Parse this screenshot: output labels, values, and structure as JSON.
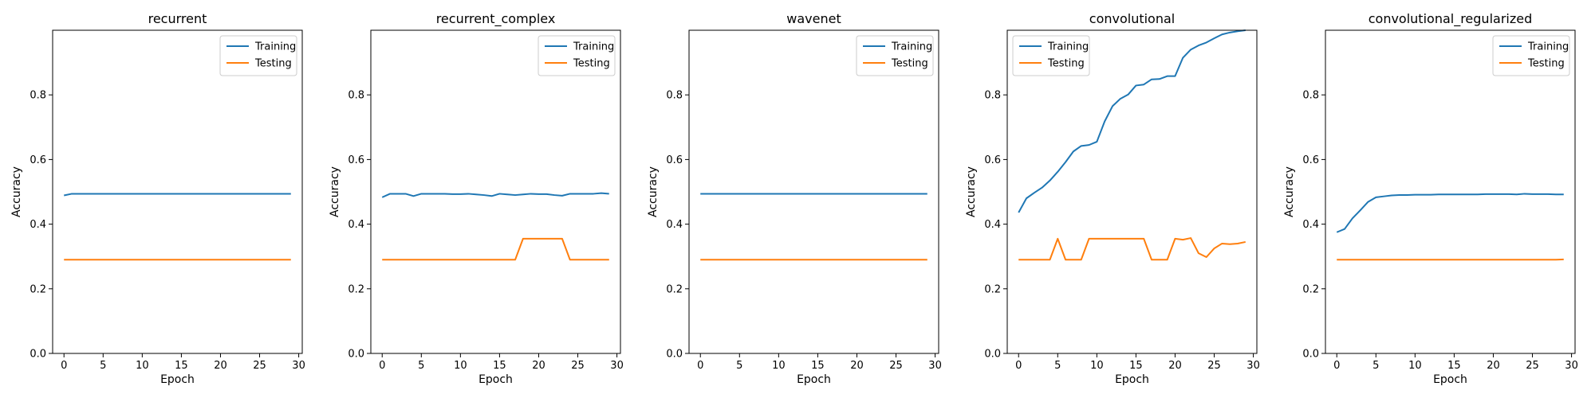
{
  "chart_data": [
    {
      "type": "line",
      "title": "recurrent",
      "xlabel": "Epoch",
      "ylabel": "Accuracy",
      "xlim": [
        -1.45,
        30.45
      ],
      "ylim": [
        0.0,
        1.0
      ],
      "xticks": [
        0,
        5,
        10,
        15,
        20,
        25,
        30
      ],
      "yticks": [
        0.0,
        0.2,
        0.4,
        0.6,
        0.8
      ],
      "legend_loc": "top-right",
      "x": [
        0,
        1,
        2,
        3,
        4,
        5,
        6,
        7,
        8,
        9,
        10,
        11,
        12,
        13,
        14,
        15,
        16,
        17,
        18,
        19,
        20,
        21,
        22,
        23,
        24,
        25,
        26,
        27,
        28,
        29
      ],
      "series": [
        {
          "name": "Training",
          "color": "#1f77b4",
          "values": [
            0.489,
            0.494,
            0.494,
            0.494,
            0.494,
            0.494,
            0.494,
            0.494,
            0.494,
            0.494,
            0.494,
            0.494,
            0.494,
            0.494,
            0.494,
            0.494,
            0.494,
            0.494,
            0.494,
            0.494,
            0.494,
            0.494,
            0.494,
            0.494,
            0.494,
            0.494,
            0.494,
            0.494,
            0.494,
            0.494
          ]
        },
        {
          "name": "Testing",
          "color": "#ff7f0e",
          "values": [
            0.29,
            0.29,
            0.29,
            0.29,
            0.29,
            0.29,
            0.29,
            0.29,
            0.29,
            0.29,
            0.29,
            0.29,
            0.29,
            0.29,
            0.29,
            0.29,
            0.29,
            0.29,
            0.29,
            0.29,
            0.29,
            0.29,
            0.29,
            0.29,
            0.29,
            0.29,
            0.29,
            0.29,
            0.29,
            0.29
          ]
        }
      ]
    },
    {
      "type": "line",
      "title": "recurrent_complex",
      "xlabel": "Epoch",
      "ylabel": "Accuracy",
      "xlim": [
        -1.45,
        30.45
      ],
      "ylim": [
        0.0,
        1.0
      ],
      "xticks": [
        0,
        5,
        10,
        15,
        20,
        25,
        30
      ],
      "yticks": [
        0.0,
        0.2,
        0.4,
        0.6,
        0.8
      ],
      "legend_loc": "top-right",
      "x": [
        0,
        1,
        2,
        3,
        4,
        5,
        6,
        7,
        8,
        9,
        10,
        11,
        12,
        13,
        14,
        15,
        16,
        17,
        18,
        19,
        20,
        21,
        22,
        23,
        24,
        25,
        26,
        27,
        28,
        29
      ],
      "series": [
        {
          "name": "Training",
          "color": "#1f77b4",
          "values": [
            0.483,
            0.494,
            0.494,
            0.494,
            0.487,
            0.494,
            0.494,
            0.494,
            0.494,
            0.493,
            0.493,
            0.494,
            0.492,
            0.49,
            0.487,
            0.494,
            0.492,
            0.49,
            0.492,
            0.494,
            0.493,
            0.493,
            0.49,
            0.488,
            0.494,
            0.494,
            0.494,
            0.494,
            0.496,
            0.494
          ]
        },
        {
          "name": "Testing",
          "color": "#ff7f0e",
          "values": [
            0.29,
            0.29,
            0.29,
            0.29,
            0.29,
            0.29,
            0.29,
            0.29,
            0.29,
            0.29,
            0.29,
            0.29,
            0.29,
            0.29,
            0.29,
            0.29,
            0.29,
            0.29,
            0.355,
            0.355,
            0.355,
            0.355,
            0.355,
            0.355,
            0.29,
            0.29,
            0.29,
            0.29,
            0.29,
            0.29
          ]
        }
      ]
    },
    {
      "type": "line",
      "title": "wavenet",
      "xlabel": "Epoch",
      "ylabel": "Accuracy",
      "xlim": [
        -1.45,
        30.45
      ],
      "ylim": [
        0.0,
        1.0
      ],
      "xticks": [
        0,
        5,
        10,
        15,
        20,
        25,
        30
      ],
      "yticks": [
        0.0,
        0.2,
        0.4,
        0.6,
        0.8
      ],
      "legend_loc": "top-right",
      "x": [
        0,
        1,
        2,
        3,
        4,
        5,
        6,
        7,
        8,
        9,
        10,
        11,
        12,
        13,
        14,
        15,
        16,
        17,
        18,
        19,
        20,
        21,
        22,
        23,
        24,
        25,
        26,
        27,
        28,
        29
      ],
      "series": [
        {
          "name": "Training",
          "color": "#1f77b4",
          "values": [
            0.494,
            0.494,
            0.494,
            0.494,
            0.494,
            0.494,
            0.494,
            0.494,
            0.494,
            0.494,
            0.494,
            0.494,
            0.494,
            0.494,
            0.494,
            0.494,
            0.494,
            0.494,
            0.494,
            0.494,
            0.494,
            0.494,
            0.494,
            0.494,
            0.494,
            0.494,
            0.494,
            0.494,
            0.494,
            0.494
          ]
        },
        {
          "name": "Testing",
          "color": "#ff7f0e",
          "values": [
            0.29,
            0.29,
            0.29,
            0.29,
            0.29,
            0.29,
            0.29,
            0.29,
            0.29,
            0.29,
            0.29,
            0.29,
            0.29,
            0.29,
            0.29,
            0.29,
            0.29,
            0.29,
            0.29,
            0.29,
            0.29,
            0.29,
            0.29,
            0.29,
            0.29,
            0.29,
            0.29,
            0.29,
            0.29,
            0.29
          ]
        }
      ]
    },
    {
      "type": "line",
      "title": "convolutional",
      "xlabel": "Epoch",
      "ylabel": "Accuracy",
      "xlim": [
        -1.45,
        30.45
      ],
      "ylim": [
        0.0,
        1.0
      ],
      "xticks": [
        0,
        5,
        10,
        15,
        20,
        25,
        30
      ],
      "yticks": [
        0.0,
        0.2,
        0.4,
        0.6,
        0.8
      ],
      "legend_loc": "top-left",
      "x": [
        0,
        1,
        2,
        3,
        4,
        5,
        6,
        7,
        8,
        9,
        10,
        11,
        12,
        13,
        14,
        15,
        16,
        17,
        18,
        19,
        20,
        21,
        22,
        23,
        24,
        25,
        26,
        27,
        28,
        29
      ],
      "series": [
        {
          "name": "Training",
          "color": "#1f77b4",
          "values": [
            0.436,
            0.48,
            0.497,
            0.513,
            0.535,
            0.562,
            0.592,
            0.625,
            0.642,
            0.645,
            0.655,
            0.718,
            0.765,
            0.788,
            0.801,
            0.829,
            0.832,
            0.848,
            0.849,
            0.858,
            0.858,
            0.915,
            0.94,
            0.953,
            0.962,
            0.975,
            0.987,
            0.993,
            0.997,
            1.0
          ]
        },
        {
          "name": "Testing",
          "color": "#ff7f0e",
          "values": [
            0.29,
            0.29,
            0.29,
            0.29,
            0.29,
            0.355,
            0.29,
            0.29,
            0.29,
            0.355,
            0.355,
            0.355,
            0.355,
            0.355,
            0.355,
            0.355,
            0.355,
            0.29,
            0.29,
            0.29,
            0.355,
            0.352,
            0.357,
            0.31,
            0.298,
            0.325,
            0.34,
            0.338,
            0.34,
            0.345
          ]
        }
      ]
    },
    {
      "type": "line",
      "title": "convolutional_regularized",
      "xlabel": "Epoch",
      "ylabel": "Accuracy",
      "xlim": [
        -1.45,
        30.45
      ],
      "ylim": [
        0.0,
        1.0
      ],
      "xticks": [
        0,
        5,
        10,
        15,
        20,
        25,
        30
      ],
      "yticks": [
        0.0,
        0.2,
        0.4,
        0.6,
        0.8
      ],
      "legend_loc": "top-right",
      "x": [
        0,
        1,
        2,
        3,
        4,
        5,
        6,
        7,
        8,
        9,
        10,
        11,
        12,
        13,
        14,
        15,
        16,
        17,
        18,
        19,
        20,
        21,
        22,
        23,
        24,
        25,
        26,
        27,
        28,
        29
      ],
      "series": [
        {
          "name": "Training",
          "color": "#1f77b4",
          "values": [
            0.375,
            0.385,
            0.418,
            0.443,
            0.469,
            0.483,
            0.486,
            0.489,
            0.49,
            0.49,
            0.491,
            0.491,
            0.491,
            0.492,
            0.492,
            0.492,
            0.492,
            0.492,
            0.492,
            0.493,
            0.493,
            0.493,
            0.493,
            0.492,
            0.494,
            0.493,
            0.493,
            0.493,
            0.492,
            0.492
          ]
        },
        {
          "name": "Testing",
          "color": "#ff7f0e",
          "values": [
            0.29,
            0.29,
            0.29,
            0.29,
            0.29,
            0.29,
            0.29,
            0.29,
            0.29,
            0.29,
            0.29,
            0.29,
            0.29,
            0.29,
            0.29,
            0.29,
            0.29,
            0.29,
            0.29,
            0.29,
            0.29,
            0.29,
            0.29,
            0.29,
            0.29,
            0.29,
            0.29,
            0.29,
            0.29,
            0.291
          ]
        }
      ]
    }
  ]
}
